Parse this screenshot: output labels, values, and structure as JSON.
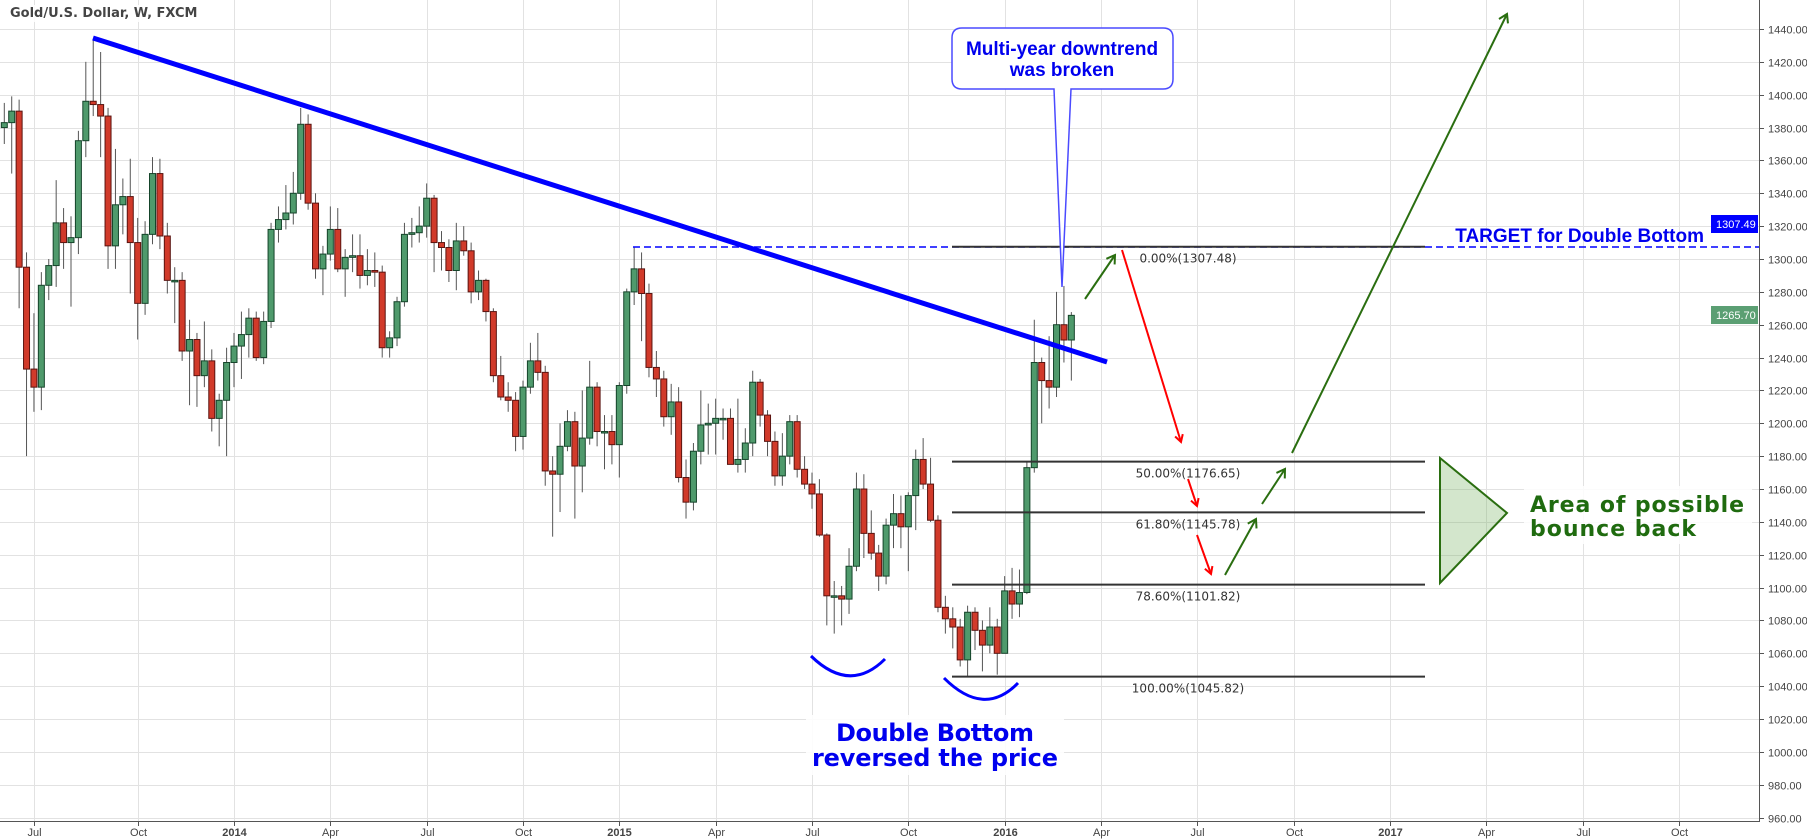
{
  "header": {
    "title": "Gold/U.S. Dollar, W, FXCM"
  },
  "price_labels": {
    "target": "1307.49",
    "last": "1265.70"
  },
  "colors": {
    "up": "#4f9a6c",
    "down": "#d13a2a",
    "trendline": "#0000ff",
    "target": "#0000ee",
    "bounce": "#1f6b0f",
    "red_arrow": "#ff0000",
    "green_arrow": "#2a6e10",
    "last_price": "#5b9f73"
  },
  "annotations": {
    "callout": [
      "Multi-year downtrend",
      "was broken"
    ],
    "target_text": "TARGET for Double Bottom",
    "double_bottom": [
      "Double Bottom",
      "reversed the price"
    ],
    "bounce_area": [
      "Area of possible",
      "bounce back"
    ]
  },
  "chart_data": {
    "type": "candlestick",
    "symbol": "Gold/U.S. Dollar",
    "interval": "W",
    "first_bar": "2013-06-03",
    "ylim": [
      960,
      1440
    ],
    "grid": true,
    "yticks": [
      1440,
      1420,
      1400,
      1380,
      1360,
      1340,
      1320,
      1300,
      1280,
      1260,
      1240,
      1220,
      1200,
      1180,
      1160,
      1140,
      1120,
      1100,
      1080,
      1060,
      1040,
      1020,
      1000,
      980,
      960
    ],
    "xticks": [
      {
        "label": "Jul",
        "date": "2013-07-01"
      },
      {
        "label": "Oct",
        "date": "2013-10-01"
      },
      {
        "label": "2014",
        "date": "2014-01-01",
        "year": true
      },
      {
        "label": "Apr",
        "date": "2014-04-01"
      },
      {
        "label": "Jul",
        "date": "2014-07-01"
      },
      {
        "label": "Oct",
        "date": "2014-10-01"
      },
      {
        "label": "2015",
        "date": "2015-01-01",
        "year": true
      },
      {
        "label": "Apr",
        "date": "2015-04-01"
      },
      {
        "label": "Jul",
        "date": "2015-07-01"
      },
      {
        "label": "Oct",
        "date": "2015-10-01"
      },
      {
        "label": "2016",
        "date": "2016-01-01",
        "year": true
      },
      {
        "label": "Apr",
        "date": "2016-04-01"
      },
      {
        "label": "Jul",
        "date": "2016-07-01"
      },
      {
        "label": "Oct",
        "date": "2016-10-01"
      },
      {
        "label": "2017",
        "date": "2017-01-01",
        "year": true
      },
      {
        "label": "Apr",
        "date": "2017-04-01"
      },
      {
        "label": "Jul",
        "date": "2017-07-01"
      },
      {
        "label": "Oct",
        "date": "2017-10-01"
      }
    ],
    "ohlc": [
      [
        1380,
        1395,
        1370,
        1383
      ],
      [
        1383,
        1399,
        1352,
        1390
      ],
      [
        1390,
        1397,
        1270,
        1295
      ],
      [
        1295,
        1304,
        1180,
        1233
      ],
      [
        1233,
        1267,
        1207,
        1222
      ],
      [
        1222,
        1292,
        1208,
        1284
      ],
      [
        1284,
        1300,
        1275,
        1296
      ],
      [
        1296,
        1348,
        1283,
        1322
      ],
      [
        1322,
        1331,
        1294,
        1310
      ],
      [
        1310,
        1326,
        1271,
        1313
      ],
      [
        1313,
        1378,
        1303,
        1372
      ],
      [
        1372,
        1420,
        1362,
        1396
      ],
      [
        1396,
        1434,
        1387,
        1394
      ],
      [
        1394,
        1426,
        1362,
        1387
      ],
      [
        1387,
        1392,
        1294,
        1308
      ],
      [
        1308,
        1367,
        1294,
        1333
      ],
      [
        1333,
        1349,
        1315,
        1338
      ],
      [
        1338,
        1361,
        1279,
        1310
      ],
      [
        1310,
        1325,
        1251,
        1273
      ],
      [
        1273,
        1323,
        1266,
        1315
      ],
      [
        1315,
        1362,
        1309,
        1352
      ],
      [
        1352,
        1361,
        1306,
        1314
      ],
      [
        1314,
        1322,
        1279,
        1287
      ],
      [
        1287,
        1295,
        1261,
        1287
      ],
      [
        1287,
        1292,
        1238,
        1244
      ],
      [
        1244,
        1263,
        1211,
        1251
      ],
      [
        1251,
        1255,
        1210,
        1229
      ],
      [
        1229,
        1262,
        1222,
        1238
      ],
      [
        1238,
        1245,
        1195,
        1203
      ],
      [
        1203,
        1218,
        1186,
        1214
      ],
      [
        1214,
        1246,
        1180,
        1237
      ],
      [
        1237,
        1255,
        1222,
        1247
      ],
      [
        1247,
        1268,
        1227,
        1254
      ],
      [
        1254,
        1270,
        1240,
        1264
      ],
      [
        1264,
        1268,
        1238,
        1240
      ],
      [
        1240,
        1268,
        1236,
        1262
      ],
      [
        1262,
        1322,
        1258,
        1318
      ],
      [
        1318,
        1332,
        1310,
        1324
      ],
      [
        1324,
        1345,
        1318,
        1328
      ],
      [
        1328,
        1353,
        1321,
        1340
      ],
      [
        1340,
        1392,
        1336,
        1382
      ],
      [
        1382,
        1388,
        1330,
        1334
      ],
      [
        1334,
        1340,
        1288,
        1294
      ],
      [
        1294,
        1308,
        1278,
        1303
      ],
      [
        1303,
        1332,
        1299,
        1318
      ],
      [
        1318,
        1331,
        1292,
        1294
      ],
      [
        1294,
        1306,
        1277,
        1301
      ],
      [
        1301,
        1315,
        1292,
        1302
      ],
      [
        1302,
        1315,
        1282,
        1290
      ],
      [
        1290,
        1306,
        1284,
        1293
      ],
      [
        1293,
        1304,
        1283,
        1292
      ],
      [
        1292,
        1296,
        1240,
        1246
      ],
      [
        1246,
        1256,
        1240,
        1252
      ],
      [
        1252,
        1277,
        1247,
        1274
      ],
      [
        1274,
        1322,
        1271,
        1315
      ],
      [
        1315,
        1325,
        1307,
        1316
      ],
      [
        1316,
        1332,
        1310,
        1320
      ],
      [
        1320,
        1346,
        1313,
        1337
      ],
      [
        1337,
        1339,
        1292,
        1310
      ],
      [
        1310,
        1317,
        1293,
        1307
      ],
      [
        1307,
        1312,
        1286,
        1293
      ],
      [
        1293,
        1322,
        1281,
        1311
      ],
      [
        1311,
        1320,
        1302,
        1305
      ],
      [
        1305,
        1310,
        1273,
        1280
      ],
      [
        1280,
        1293,
        1275,
        1287
      ],
      [
        1287,
        1288,
        1262,
        1268
      ],
      [
        1268,
        1270,
        1225,
        1229
      ],
      [
        1229,
        1241,
        1214,
        1216
      ],
      [
        1216,
        1225,
        1207,
        1214
      ],
      [
        1214,
        1219,
        1183,
        1192
      ],
      [
        1192,
        1226,
        1184,
        1222
      ],
      [
        1222,
        1249,
        1218,
        1238
      ],
      [
        1238,
        1255,
        1226,
        1231
      ],
      [
        1231,
        1235,
        1162,
        1171
      ],
      [
        1171,
        1180,
        1131,
        1169
      ],
      [
        1169,
        1200,
        1146,
        1186
      ],
      [
        1186,
        1208,
        1183,
        1201
      ],
      [
        1201,
        1207,
        1142,
        1174
      ],
      [
        1174,
        1220,
        1158,
        1191
      ],
      [
        1191,
        1238,
        1187,
        1222
      ],
      [
        1222,
        1225,
        1186,
        1195
      ],
      [
        1195,
        1205,
        1172,
        1195
      ],
      [
        1195,
        1205,
        1175,
        1187
      ],
      [
        1187,
        1225,
        1167,
        1223
      ],
      [
        1223,
        1282,
        1218,
        1280
      ],
      [
        1280,
        1307.48,
        1272,
        1294
      ],
      [
        1294,
        1304,
        1250,
        1279
      ],
      [
        1279,
        1285,
        1228,
        1234
      ],
      [
        1234,
        1244,
        1216,
        1227
      ],
      [
        1227,
        1232,
        1198,
        1204
      ],
      [
        1204,
        1224,
        1193,
        1213
      ],
      [
        1213,
        1222,
        1164,
        1167
      ],
      [
        1167,
        1178,
        1142,
        1152
      ],
      [
        1152,
        1188,
        1147,
        1183
      ],
      [
        1183,
        1220,
        1175,
        1199
      ],
      [
        1199,
        1212,
        1181,
        1200
      ],
      [
        1200,
        1215,
        1181,
        1203
      ],
      [
        1203,
        1209,
        1190,
        1203
      ],
      [
        1203,
        1209,
        1175,
        1175
      ],
      [
        1175,
        1215,
        1170,
        1178
      ],
      [
        1178,
        1197,
        1170,
        1188
      ],
      [
        1188,
        1232,
        1180,
        1225
      ],
      [
        1225,
        1227,
        1198,
        1205
      ],
      [
        1205,
        1208,
        1180,
        1189
      ],
      [
        1189,
        1195,
        1162,
        1168
      ],
      [
        1168,
        1194,
        1162,
        1180
      ],
      [
        1180,
        1205,
        1175,
        1201
      ],
      [
        1201,
        1205,
        1167,
        1172
      ],
      [
        1172,
        1180,
        1160,
        1163
      ],
      [
        1163,
        1170,
        1148,
        1157
      ],
      [
        1157,
        1166,
        1131,
        1132
      ],
      [
        1132,
        1133,
        1077,
        1095
      ],
      [
        1095,
        1104,
        1072,
        1095
      ],
      [
        1095,
        1101,
        1077,
        1093
      ],
      [
        1093,
        1124,
        1084,
        1113
      ],
      [
        1113,
        1170,
        1110,
        1160
      ],
      [
        1160,
        1169,
        1118,
        1133
      ],
      [
        1133,
        1147,
        1117,
        1121
      ],
      [
        1121,
        1126,
        1098,
        1107
      ],
      [
        1107,
        1142,
        1102,
        1138
      ],
      [
        1138,
        1157,
        1124,
        1145
      ],
      [
        1145,
        1156,
        1124,
        1137
      ],
      [
        1137,
        1158,
        1110,
        1156
      ],
      [
        1156,
        1184,
        1135,
        1178
      ],
      [
        1178,
        1191,
        1160,
        1163
      ],
      [
        1163,
        1179,
        1140,
        1141
      ],
      [
        1141,
        1144,
        1085,
        1088
      ],
      [
        1088,
        1095,
        1072,
        1081
      ],
      [
        1081,
        1088,
        1063,
        1076
      ],
      [
        1076,
        1081,
        1052,
        1056
      ],
      [
        1056,
        1089,
        1045.82,
        1085
      ],
      [
        1085,
        1088,
        1062,
        1074
      ],
      [
        1074,
        1080,
        1049,
        1065
      ],
      [
        1065,
        1088,
        1060,
        1076
      ],
      [
        1076,
        1081,
        1047,
        1060
      ],
      [
        1060,
        1107,
        1060,
        1098
      ],
      [
        1098,
        1112,
        1081,
        1090
      ],
      [
        1090,
        1111,
        1082,
        1097
      ],
      [
        1097,
        1177,
        1096,
        1173
      ],
      [
        1173,
        1263,
        1170,
        1237
      ],
      [
        1237,
        1240,
        1200,
        1226
      ],
      [
        1226,
        1253,
        1209,
        1222
      ],
      [
        1222,
        1280,
        1216,
        1260
      ],
      [
        1260,
        1283.6,
        1237,
        1250.7
      ],
      [
        1250.7,
        1267.7,
        1226,
        1265.7
      ]
    ],
    "trendline": {
      "from": {
        "date": "2013-08-26",
        "price": 1434
      },
      "to": {
        "date": "2016-04-10",
        "price": 1237.3
      }
    },
    "target_level": 1307.48,
    "fibonacci": [
      {
        "label": "0.00%(1307.48)",
        "level": 0,
        "price": 1307.48
      },
      {
        "label": "50.00%(1176.65)",
        "level": 50,
        "price": 1176.65
      },
      {
        "label": "61.80%(1145.78)",
        "level": 61.8,
        "price": 1145.78
      },
      {
        "label": "78.60%(1101.82)",
        "level": 78.6,
        "price": 1101.82
      },
      {
        "label": "100.00%(1045.82)",
        "level": 100,
        "price": 1045.82
      }
    ]
  }
}
